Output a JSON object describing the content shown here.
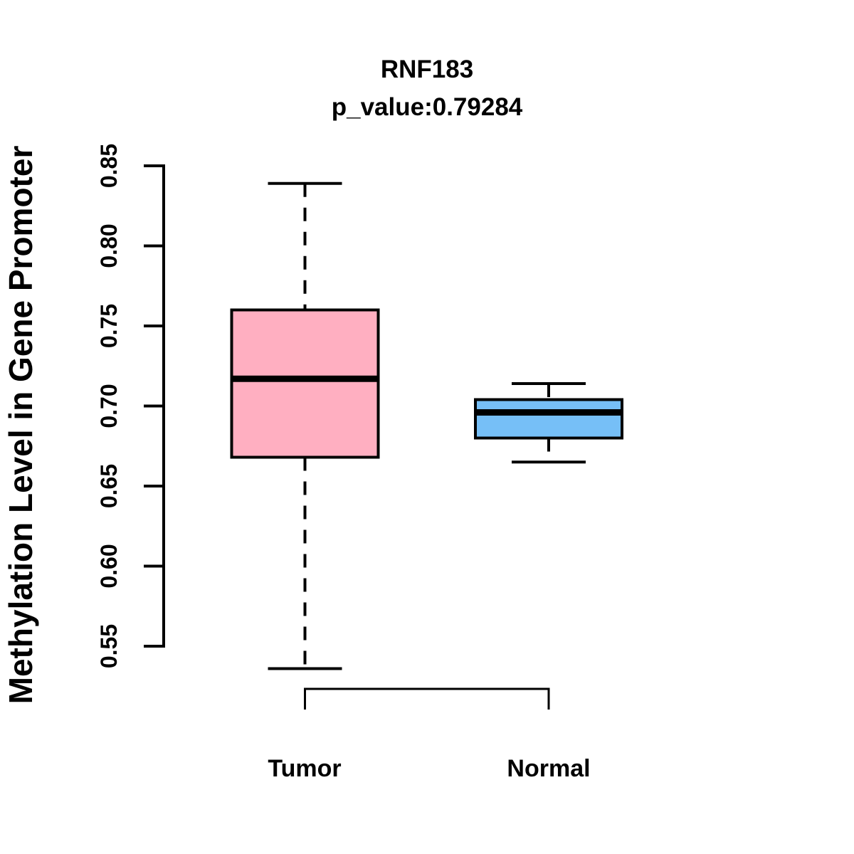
{
  "chart_data": {
    "type": "boxplot",
    "title": "RNF183",
    "subtitle": "p_value:0.79284",
    "ylabel": "Methylation Level in Gene Promoter",
    "xlabel": "",
    "categories": [
      "Tumor",
      "Normal"
    ],
    "grid": false,
    "legend": false,
    "y_axis": {
      "ticks": [
        0.55,
        0.6,
        0.65,
        0.7,
        0.75,
        0.8,
        0.85
      ],
      "tick_labels": [
        "0.55",
        "0.60",
        "0.65",
        "0.70",
        "0.75",
        "0.80",
        "0.85"
      ],
      "shown_data_range": [
        0.536,
        0.839
      ]
    },
    "series": [
      {
        "name": "Tumor",
        "fill_color": "#FFAFC1",
        "box": {
          "lower_whisker": 0.536,
          "q1": 0.668,
          "median": 0.717,
          "q3": 0.76,
          "upper_whisker": 0.839
        }
      },
      {
        "name": "Normal",
        "fill_color": "#76BFF7",
        "box": {
          "lower_whisker": 0.665,
          "q1": 0.68,
          "median": 0.696,
          "q3": 0.704,
          "upper_whisker": 0.714
        }
      }
    ],
    "colors": {
      "stroke": "#000000",
      "background": "#FFFFFF"
    }
  }
}
